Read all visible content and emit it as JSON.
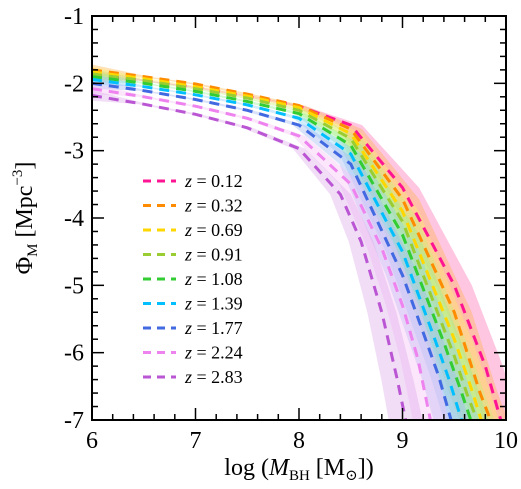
{
  "chart_data": {
    "type": "line",
    "xlabel": "log (M_BH [M_⊙])",
    "ylabel": "Φ_M [Mpc^-3]",
    "xlim": [
      6,
      10
    ],
    "ylim": [
      -7,
      -1
    ],
    "xticks": [
      6,
      7,
      8,
      9,
      10
    ],
    "yticks": [
      -1,
      -2,
      -3,
      -4,
      -5,
      -6,
      -7
    ],
    "grid": false,
    "legend_position": "left-center",
    "legend_prefix": "z =",
    "bands": "shaded uncertainty band around each series",
    "series": [
      {
        "name": "0.12",
        "color": "#ff1493",
        "band_color": "#ff69b4",
        "x": [
          6.0,
          6.5,
          7.0,
          7.5,
          8.0,
          8.5,
          9.0,
          9.5,
          9.8,
          9.95
        ],
        "y": [
          -1.88,
          -1.96,
          -2.06,
          -2.19,
          -2.34,
          -2.62,
          -3.55,
          -5.0,
          -6.2,
          -7.0
        ]
      },
      {
        "name": "0.32",
        "color": "#ff8c00",
        "band_color": "#ffb347",
        "x": [
          6.0,
          6.5,
          7.0,
          7.5,
          8.0,
          8.5,
          9.0,
          9.5,
          9.75,
          9.85
        ],
        "y": [
          -1.8,
          -1.9,
          -2.01,
          -2.16,
          -2.33,
          -2.68,
          -3.72,
          -5.4,
          -6.6,
          -7.0
        ]
      },
      {
        "name": "0.69",
        "color": "#ffd700",
        "band_color": "#ffec70",
        "x": [
          6.0,
          6.5,
          7.0,
          7.5,
          8.0,
          8.5,
          9.0,
          9.5,
          9.68,
          9.76
        ],
        "y": [
          -1.83,
          -1.93,
          -2.05,
          -2.19,
          -2.36,
          -2.75,
          -3.9,
          -5.8,
          -6.6,
          -7.0
        ]
      },
      {
        "name": "0.91",
        "color": "#9acd32",
        "band_color": "#c6f07a",
        "x": [
          6.0,
          6.5,
          7.0,
          7.5,
          8.0,
          8.5,
          9.0,
          9.5,
          9.62,
          9.72
        ],
        "y": [
          -1.86,
          -1.96,
          -2.08,
          -2.22,
          -2.4,
          -2.82,
          -4.05,
          -6.05,
          -6.6,
          -7.0
        ]
      },
      {
        "name": "1.08",
        "color": "#32cd32",
        "band_color": "#90ee90",
        "x": [
          6.0,
          6.5,
          7.0,
          7.5,
          8.0,
          8.5,
          9.0,
          9.4,
          9.55,
          9.66
        ],
        "y": [
          -1.9,
          -2.0,
          -2.12,
          -2.27,
          -2.45,
          -2.92,
          -4.25,
          -5.85,
          -6.5,
          -7.0
        ]
      },
      {
        "name": "1.39",
        "color": "#00bfff",
        "band_color": "#87cefa",
        "x": [
          6.0,
          6.5,
          7.0,
          7.5,
          8.0,
          8.5,
          9.0,
          9.3,
          9.45,
          9.57
        ],
        "y": [
          -1.94,
          -2.05,
          -2.17,
          -2.32,
          -2.52,
          -3.05,
          -4.5,
          -5.75,
          -6.4,
          -7.0
        ]
      },
      {
        "name": "1.77",
        "color": "#4169e1",
        "band_color": "#9fb4f0",
        "x": [
          6.0,
          6.5,
          7.0,
          7.5,
          8.0,
          8.5,
          9.0,
          9.2,
          9.35,
          9.47
        ],
        "y": [
          -2.0,
          -2.11,
          -2.24,
          -2.4,
          -2.62,
          -3.2,
          -4.85,
          -5.7,
          -6.35,
          -7.0
        ]
      },
      {
        "name": "2.24",
        "color": "#ee82ee",
        "band_color": "#f5bdf5",
        "x": [
          6.0,
          6.5,
          7.0,
          7.5,
          8.0,
          8.5,
          8.8,
          9.0,
          9.15,
          9.27
        ],
        "y": [
          -2.08,
          -2.2,
          -2.34,
          -2.52,
          -2.78,
          -3.5,
          -4.45,
          -5.3,
          -6.1,
          -7.0
        ]
      },
      {
        "name": "2.83",
        "color": "#ba55d3",
        "band_color": "#dda6ea",
        "x": [
          6.0,
          6.5,
          7.0,
          7.5,
          8.0,
          8.4,
          8.6,
          8.8,
          8.95,
          9.03
        ],
        "y": [
          -2.18,
          -2.31,
          -2.46,
          -2.66,
          -2.97,
          -3.65,
          -4.35,
          -5.4,
          -6.4,
          -7.0
        ]
      }
    ]
  }
}
